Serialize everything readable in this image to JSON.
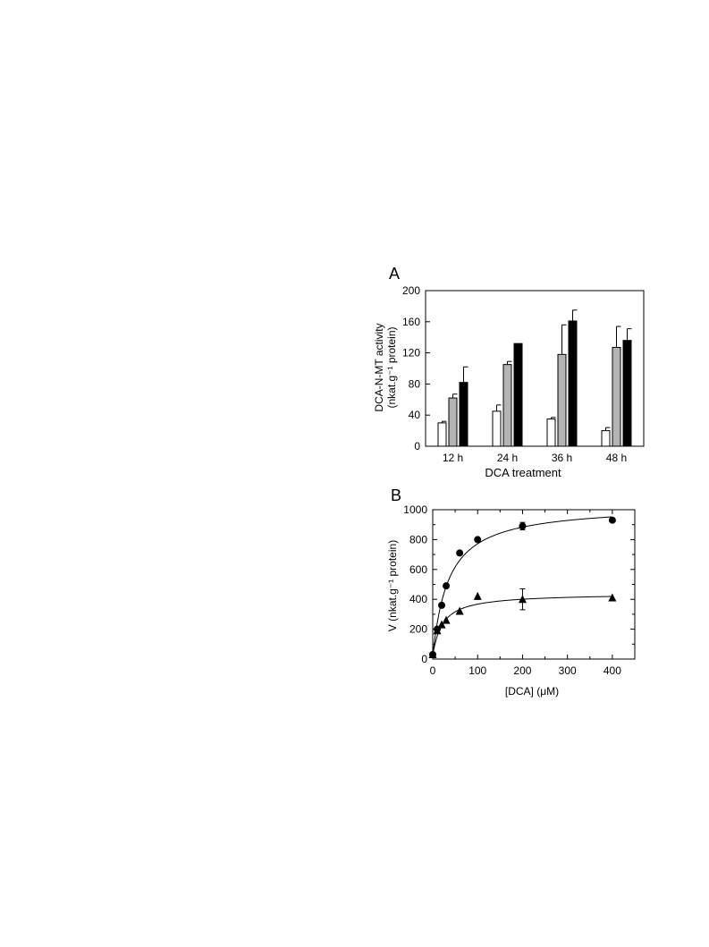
{
  "chart_data": [
    {
      "panel_label": "A",
      "type": "bar",
      "categories": [
        "12 h",
        "24 h",
        "36 h",
        "48 h"
      ],
      "xlabel": "DCA treatment",
      "ylabel": "DCA-N-MT activity",
      "ylabel_line2": "(nkat.g⁻¹ protein)",
      "ylim": [
        0,
        200
      ],
      "yticks": [
        "0",
        "40",
        "80",
        "120",
        "160",
        "200"
      ],
      "grid": false,
      "series": [
        {
          "color": "#ffffff",
          "values": [
            30,
            45,
            35,
            20
          ],
          "errors": [
            2,
            8,
            2,
            4
          ]
        },
        {
          "color": "#b4b4b4",
          "values": [
            62,
            105,
            118,
            127
          ],
          "errors": [
            5,
            4,
            38,
            27
          ]
        },
        {
          "color": "#000000",
          "values": [
            82,
            132,
            161,
            136
          ],
          "errors": [
            20,
            0,
            14,
            15
          ]
        }
      ]
    },
    {
      "panel_label": "B",
      "type": "scatter",
      "xlabel": "[DCA] (μM)",
      "ylabel": "V  (nkat.g⁻¹ protein)",
      "xlim": [
        0,
        450
      ],
      "ylim": [
        0,
        1000
      ],
      "xticks": [
        "0",
        "100",
        "200",
        "300",
        "400"
      ],
      "yticks": [
        "0",
        "200",
        "400",
        "600",
        "800",
        "1000"
      ],
      "grid": false,
      "series": [
        {
          "marker": "circle",
          "points": [
            [
              0,
              30
            ],
            [
              10,
              200
            ],
            [
              20,
              360
            ],
            [
              30,
              490
            ],
            [
              60,
              710
            ],
            [
              100,
              800
            ],
            [
              200,
              890
            ],
            [
              400,
              930
            ]
          ],
          "errors": [
            0,
            0,
            0,
            0,
            0,
            0,
            25,
            0
          ],
          "fit": {
            "vmax": 1033,
            "km": 34
          }
        },
        {
          "marker": "triangle",
          "points": [
            [
              0,
              30
            ],
            [
              10,
              190
            ],
            [
              20,
              230
            ],
            [
              30,
              260
            ],
            [
              60,
              320
            ],
            [
              100,
              420
            ],
            [
              200,
              400
            ],
            [
              400,
              410
            ]
          ],
          "errors": [
            0,
            0,
            0,
            0,
            0,
            0,
            70,
            0
          ],
          "fit": {
            "vmax": 440,
            "km": 20
          }
        }
      ]
    }
  ]
}
